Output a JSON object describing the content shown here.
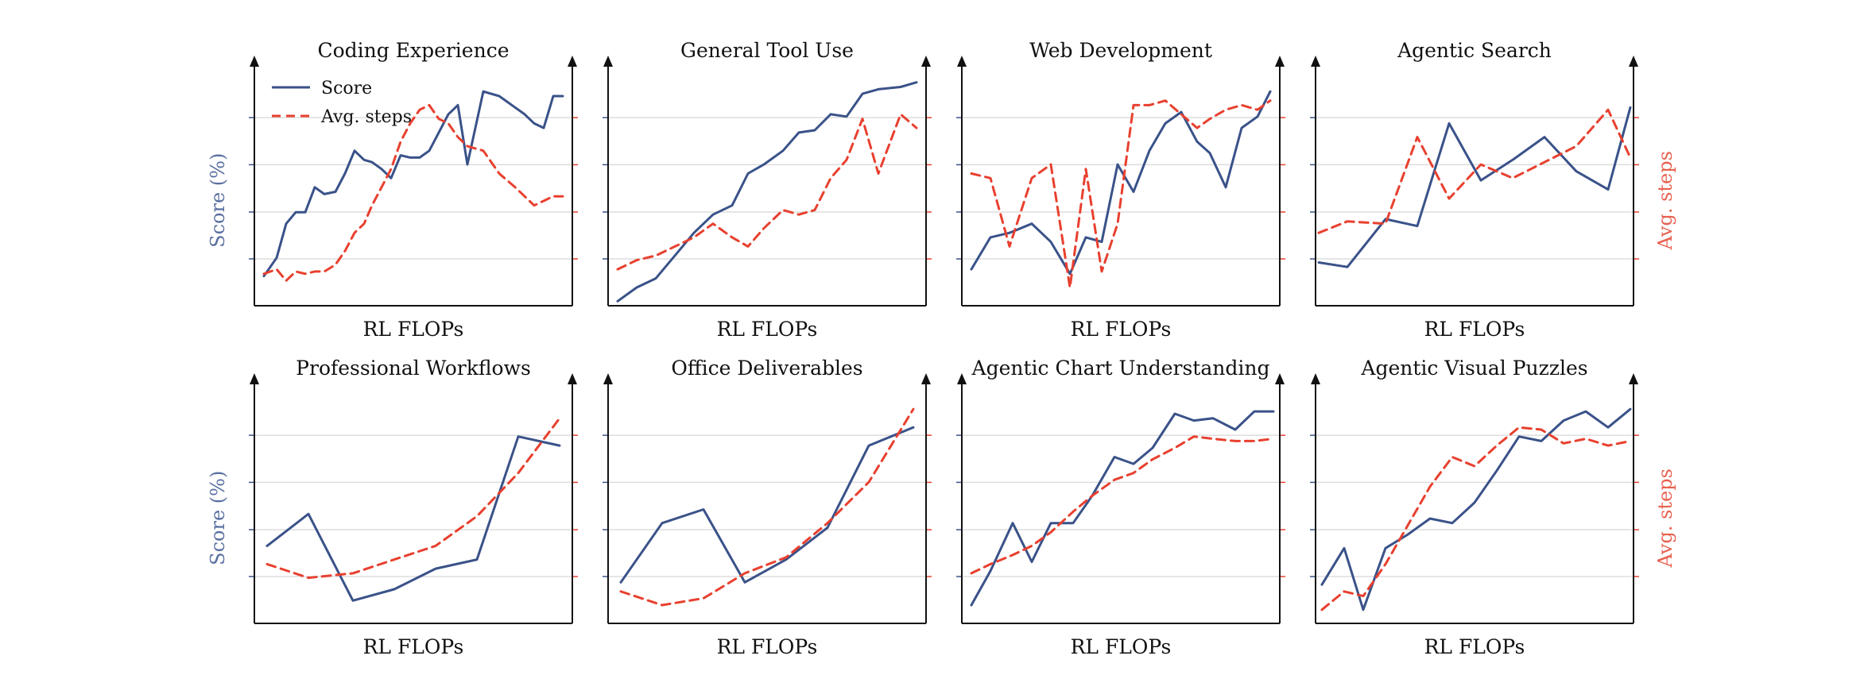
{
  "colors": {
    "score": "#3a5289",
    "steps": "#e8402f",
    "grid": "#dddddd",
    "axis": "#111111"
  },
  "legend": {
    "score": "Score",
    "steps": "Avg. steps",
    "placement": "top-left"
  },
  "chart_data": [
    {
      "type": "line",
      "title": "Coding Experience",
      "xlabel": "RL FLOPs",
      "ylabel_left": "Score (%)",
      "ylabel_right": "",
      "grid": true,
      "xlim": [
        0,
        1
      ],
      "ylim": [
        0,
        100
      ],
      "series": [
        {
          "name": "Score",
          "style": "solid",
          "x": [
            0.03,
            0.07,
            0.1,
            0.13,
            0.16,
            0.19,
            0.22,
            0.255,
            0.285,
            0.315,
            0.345,
            0.37,
            0.4,
            0.43,
            0.46,
            0.49,
            0.52,
            0.55,
            0.58,
            0.61,
            0.64,
            0.67,
            0.72,
            0.77,
            0.82,
            0.85,
            0.88,
            0.91,
            0.94,
            0.97
          ],
          "values": [
            13,
            21,
            36,
            41,
            41,
            52,
            49,
            50,
            58,
            68,
            64,
            63,
            60,
            56,
            66,
            65,
            65,
            68,
            76,
            84,
            88,
            62,
            94,
            92,
            87,
            84,
            80,
            78,
            92,
            92
          ]
        },
        {
          "name": "Avg. steps",
          "style": "dashed",
          "x": [
            0.03,
            0.07,
            0.1,
            0.13,
            0.16,
            0.19,
            0.22,
            0.255,
            0.285,
            0.315,
            0.345,
            0.37,
            0.4,
            0.43,
            0.46,
            0.49,
            0.52,
            0.55,
            0.58,
            0.61,
            0.64,
            0.67,
            0.72,
            0.77,
            0.82,
            0.85,
            0.88,
            0.91,
            0.94,
            0.97
          ],
          "values": [
            14,
            16,
            11,
            15,
            14,
            15,
            15,
            18,
            24,
            32,
            36,
            44,
            52,
            60,
            72,
            80,
            86,
            88,
            82,
            80,
            74,
            70,
            68,
            58,
            52,
            48,
            44,
            46,
            48,
            48
          ]
        }
      ]
    },
    {
      "type": "line",
      "title": "General Tool Use",
      "xlabel": "RL FLOPs",
      "ylabel_left": "",
      "ylabel_right": "",
      "grid": true,
      "xlim": [
        0,
        1
      ],
      "ylim": [
        0,
        100
      ],
      "series": [
        {
          "name": "Score",
          "style": "solid",
          "x": [
            0.03,
            0.09,
            0.15,
            0.21,
            0.27,
            0.33,
            0.39,
            0.44,
            0.49,
            0.55,
            0.6,
            0.65,
            0.7,
            0.75,
            0.8,
            0.85,
            0.92,
            0.97
          ],
          "values": [
            2,
            8,
            12,
            22,
            32,
            40,
            44,
            58,
            62,
            68,
            76,
            77,
            84,
            83,
            93,
            95,
            96,
            98
          ]
        },
        {
          "name": "Avg. steps",
          "style": "dashed",
          "x": [
            0.03,
            0.09,
            0.15,
            0.21,
            0.27,
            0.33,
            0.39,
            0.44,
            0.49,
            0.55,
            0.6,
            0.65,
            0.7,
            0.75,
            0.8,
            0.85,
            0.92,
            0.97
          ],
          "values": [
            16,
            20,
            22,
            26,
            30,
            36,
            30,
            26,
            34,
            42,
            40,
            42,
            56,
            64,
            82,
            58,
            84,
            78
          ]
        }
      ]
    },
    {
      "type": "line",
      "title": "Web Development",
      "xlabel": "RL FLOPs",
      "ylabel_left": "",
      "ylabel_right": "",
      "grid": true,
      "xlim": [
        0,
        1
      ],
      "ylim": [
        0,
        100
      ],
      "series": [
        {
          "name": "Score",
          "style": "solid",
          "x": [
            0.03,
            0.09,
            0.15,
            0.22,
            0.28,
            0.34,
            0.39,
            0.44,
            0.49,
            0.54,
            0.59,
            0.64,
            0.69,
            0.74,
            0.78,
            0.83,
            0.88,
            0.93,
            0.97
          ],
          "values": [
            16,
            30,
            32,
            36,
            28,
            14,
            30,
            28,
            62,
            50,
            68,
            80,
            85,
            72,
            67,
            52,
            78,
            83,
            94
          ]
        },
        {
          "name": "Avg. steps",
          "style": "dashed",
          "x": [
            0.03,
            0.09,
            0.15,
            0.22,
            0.28,
            0.34,
            0.39,
            0.44,
            0.49,
            0.54,
            0.59,
            0.64,
            0.69,
            0.74,
            0.78,
            0.83,
            0.88,
            0.93,
            0.97
          ],
          "values": [
            58,
            56,
            26,
            56,
            62,
            8,
            60,
            15,
            36,
            88,
            88,
            90,
            84,
            78,
            82,
            86,
            88,
            86,
            90
          ]
        }
      ]
    },
    {
      "type": "line",
      "title": "Agentic Search",
      "xlabel": "RL FLOPs",
      "ylabel_left": "",
      "ylabel_right": "Avg. steps",
      "grid": true,
      "xlim": [
        0,
        1
      ],
      "ylim": [
        0,
        100
      ],
      "series": [
        {
          "name": "Score",
          "style": "solid",
          "x": [
            0.01,
            0.1,
            0.22,
            0.32,
            0.42,
            0.52,
            0.62,
            0.72,
            0.82,
            0.92,
            0.99
          ],
          "values": [
            19,
            17,
            38,
            35,
            80,
            55,
            64,
            74,
            59,
            51,
            87
          ]
        },
        {
          "name": "Avg. steps",
          "style": "dashed",
          "x": [
            0.01,
            0.1,
            0.22,
            0.32,
            0.42,
            0.52,
            0.62,
            0.72,
            0.82,
            0.92,
            0.99
          ],
          "values": [
            32,
            37,
            36,
            74,
            47,
            62,
            56,
            63,
            70,
            86,
            65
          ]
        }
      ]
    },
    {
      "type": "line",
      "title": "Professional Workflows",
      "xlabel": "RL FLOPs",
      "ylabel_left": "Score (%)",
      "ylabel_right": "",
      "grid": true,
      "xlim": [
        0,
        1
      ],
      "ylim": [
        0,
        100
      ],
      "series": [
        {
          "name": "Score",
          "style": "solid",
          "x": [
            0.04,
            0.17,
            0.31,
            0.44,
            0.57,
            0.7,
            0.83,
            0.96
          ],
          "values": [
            34,
            48,
            10,
            15,
            24,
            28,
            82,
            78
          ]
        },
        {
          "name": "Avg. steps",
          "style": "dashed",
          "x": [
            0.04,
            0.17,
            0.31,
            0.44,
            0.57,
            0.7,
            0.83,
            0.96
          ],
          "values": [
            26,
            20,
            22,
            28,
            34,
            47,
            66,
            90
          ]
        }
      ]
    },
    {
      "type": "line",
      "title": "Office Deliverables",
      "xlabel": "RL FLOPs",
      "ylabel_left": "",
      "ylabel_right": "",
      "grid": true,
      "xlim": [
        0,
        1
      ],
      "ylim": [
        0,
        100
      ],
      "series": [
        {
          "name": "Score",
          "style": "solid",
          "x": [
            0.04,
            0.17,
            0.3,
            0.43,
            0.56,
            0.69,
            0.82,
            0.96
          ],
          "values": [
            18,
            44,
            50,
            18,
            28,
            42,
            78,
            86
          ]
        },
        {
          "name": "Avg. steps",
          "style": "dashed",
          "x": [
            0.04,
            0.17,
            0.3,
            0.43,
            0.56,
            0.69,
            0.82,
            0.96
          ],
          "values": [
            14,
            8,
            11,
            22,
            29,
            44,
            62,
            94
          ]
        }
      ]
    },
    {
      "type": "line",
      "title": "Agentic Chart Understanding",
      "xlabel": "RL FLOPs",
      "ylabel_left": "",
      "ylabel_right": "",
      "grid": true,
      "xlim": [
        0,
        1
      ],
      "ylim": [
        0,
        100
      ],
      "series": [
        {
          "name": "Score",
          "style": "solid",
          "x": [
            0.03,
            0.09,
            0.16,
            0.22,
            0.28,
            0.35,
            0.41,
            0.48,
            0.54,
            0.6,
            0.67,
            0.73,
            0.79,
            0.86,
            0.92,
            0.98
          ],
          "values": [
            8,
            23,
            44,
            27,
            44,
            44,
            56,
            73,
            70,
            77,
            92,
            89,
            90,
            85,
            93,
            93
          ]
        },
        {
          "name": "Avg. steps",
          "style": "dashed",
          "x": [
            0.03,
            0.09,
            0.16,
            0.22,
            0.28,
            0.35,
            0.41,
            0.48,
            0.54,
            0.6,
            0.67,
            0.73,
            0.79,
            0.86,
            0.92,
            0.98
          ],
          "values": [
            22,
            26,
            30,
            34,
            40,
            49,
            56,
            63,
            66,
            72,
            77,
            82,
            81,
            80,
            80,
            81
          ]
        }
      ]
    },
    {
      "type": "line",
      "title": "Agentic Visual Puzzles",
      "xlabel": "RL FLOPs",
      "ylabel_left": "",
      "ylabel_right": "Avg. steps",
      "grid": true,
      "xlim": [
        0,
        1
      ],
      "ylim": [
        0,
        100
      ],
      "series": [
        {
          "name": "Score",
          "style": "solid",
          "x": [
            0.02,
            0.09,
            0.15,
            0.22,
            0.29,
            0.36,
            0.43,
            0.5,
            0.57,
            0.64,
            0.71,
            0.78,
            0.85,
            0.92,
            0.99
          ],
          "values": [
            17,
            33,
            6,
            33,
            39,
            46,
            44,
            53,
            67,
            82,
            80,
            89,
            93,
            86,
            94
          ]
        },
        {
          "name": "Avg. steps",
          "style": "dashed",
          "x": [
            0.02,
            0.09,
            0.15,
            0.22,
            0.29,
            0.36,
            0.43,
            0.5,
            0.57,
            0.64,
            0.71,
            0.78,
            0.85,
            0.92,
            0.99
          ],
          "values": [
            6,
            14,
            12,
            26,
            43,
            60,
            73,
            69,
            78,
            86,
            85,
            79,
            81,
            78,
            80
          ]
        }
      ]
    }
  ]
}
